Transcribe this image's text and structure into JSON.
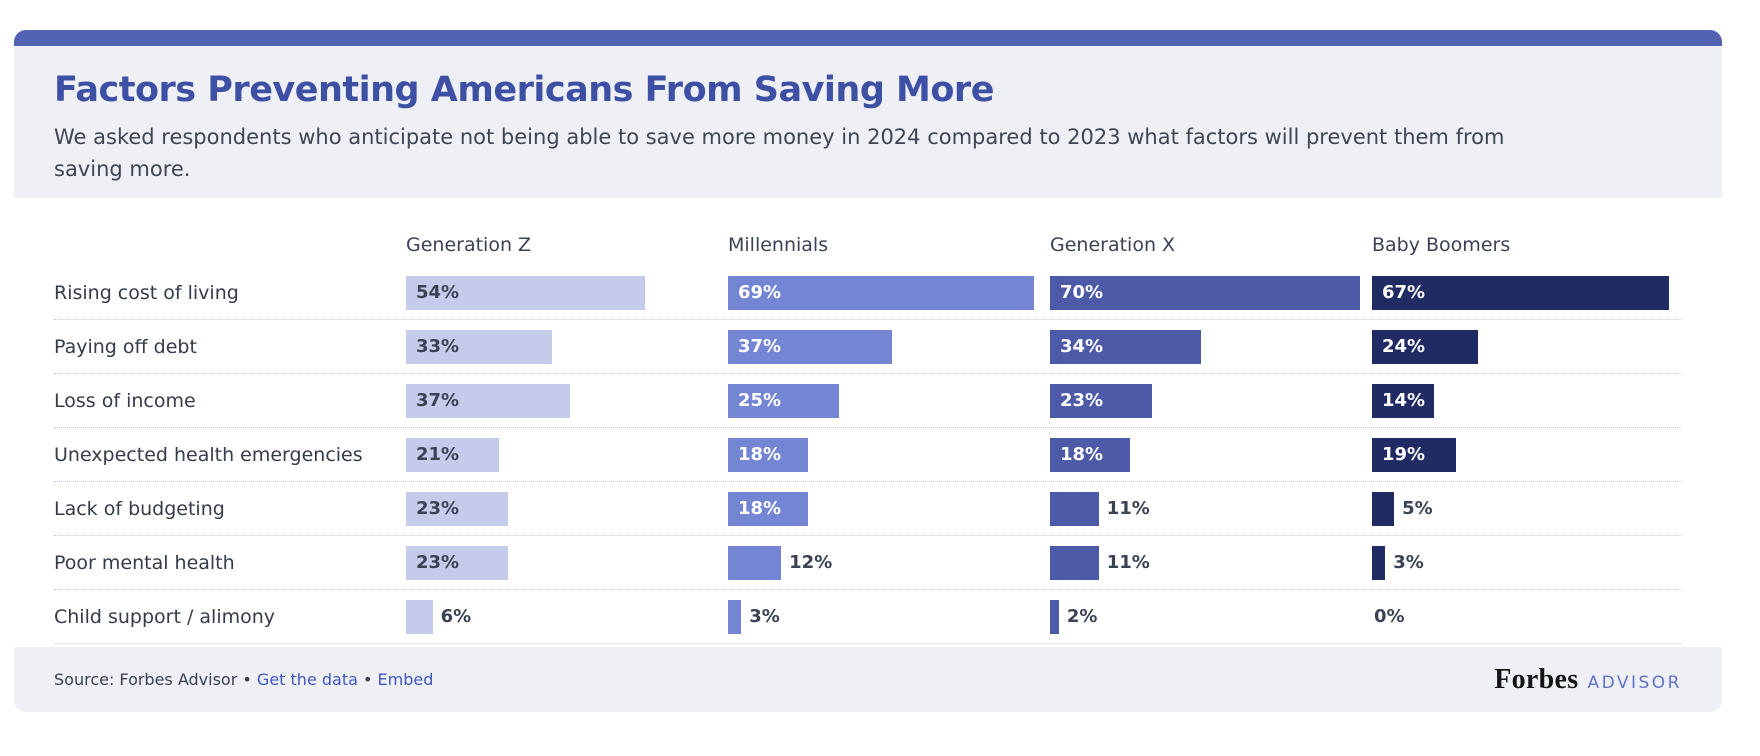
{
  "header": {
    "title": "Factors Preventing Americans From Saving More",
    "subtitle": "We asked respondents who anticipate not being able to save more money in 2024 compared to 2023 what factors will prevent them from saving more."
  },
  "chart_data": {
    "type": "bar",
    "orientation": "horizontal",
    "title": "Factors Preventing Americans From Saving More",
    "categories": [
      "Rising cost of living",
      "Paying off debt",
      "Loss of income",
      "Unexpected health emergencies",
      "Lack of budgeting",
      "Poor mental health",
      "Child support / alimony"
    ],
    "series": [
      {
        "name": "Generation Z",
        "color": "#c5cceb",
        "label_color": "#3b4254",
        "values": [
          54,
          33,
          37,
          21,
          23,
          23,
          6
        ]
      },
      {
        "name": "Millennials",
        "color": "#7486d3",
        "label_color": "#ffffff",
        "values": [
          69,
          37,
          25,
          18,
          18,
          12,
          3
        ]
      },
      {
        "name": "Generation X",
        "color": "#4c5aa7",
        "label_color": "#ffffff",
        "values": [
          70,
          34,
          23,
          18,
          11,
          11,
          2
        ]
      },
      {
        "name": "Baby Boomers",
        "color": "#202b64",
        "label_color": "#ffffff",
        "values": [
          67,
          24,
          14,
          19,
          5,
          3,
          0
        ]
      }
    ],
    "value_suffix": "%",
    "xlim": [
      0,
      70
    ],
    "inside_label_min_value": 14,
    "grid": "off",
    "legend_position": "column-headers"
  },
  "footer": {
    "source_label": "Source: Forbes Advisor",
    "bullet1": "•",
    "link_data": "Get the data",
    "bullet2": "•",
    "link_embed": "Embed",
    "brand_name": "Forbes",
    "brand_suffix": "ADVISOR"
  },
  "colors": {
    "accent_bar": "#5263b4",
    "panel_background": "#eef0f6",
    "chart_background": "#ffffff",
    "title_text": "#3e50a4",
    "body_text": "#3f4553",
    "row_separator": "#c4cad7",
    "link": "#4156be"
  }
}
